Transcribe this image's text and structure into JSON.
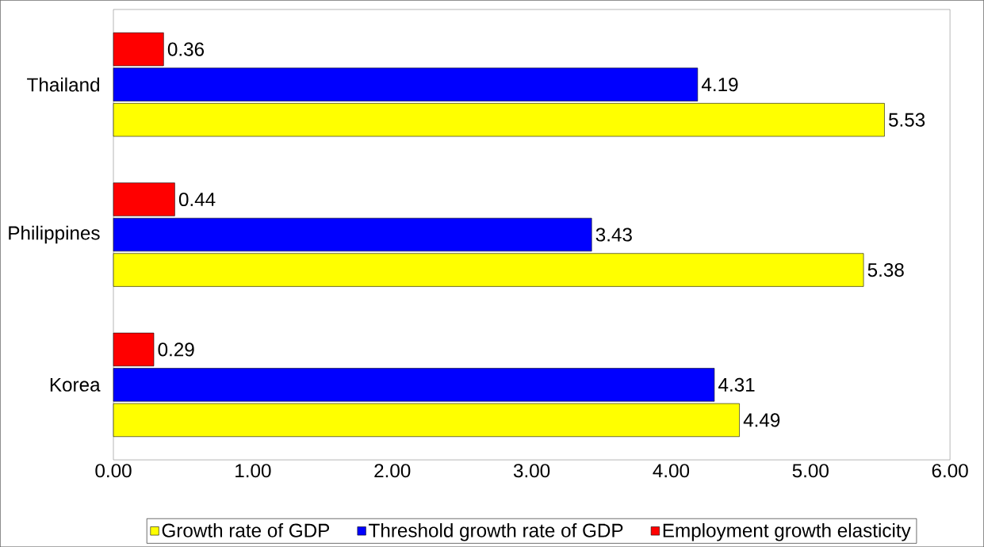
{
  "chart_data": {
    "type": "bar",
    "orientation": "horizontal",
    "categories": [
      "Thailand",
      "Philippines",
      "Korea"
    ],
    "series": [
      {
        "name": "Growth rate of GDP",
        "color": "#ffff00",
        "values": [
          5.53,
          5.38,
          4.49
        ]
      },
      {
        "name": "Threshold growth rate of GDP",
        "color": "#0000ff",
        "values": [
          4.19,
          3.43,
          4.31
        ]
      },
      {
        "name": "Employment growth elasticity",
        "color": "#ff0000",
        "values": [
          0.36,
          0.44,
          0.29
        ]
      }
    ],
    "xlim": [
      0,
      6
    ],
    "xticks": [
      {
        "value": 0,
        "label": "0.00"
      },
      {
        "value": 1,
        "label": "1.00"
      },
      {
        "value": 2,
        "label": "2.00"
      },
      {
        "value": 3,
        "label": "3.00"
      },
      {
        "value": 4,
        "label": "4.00"
      },
      {
        "value": 5,
        "label": "5.00"
      },
      {
        "value": 6,
        "label": "6.00"
      }
    ],
    "data_labels": true,
    "grid": false,
    "legend": "bottom"
  }
}
